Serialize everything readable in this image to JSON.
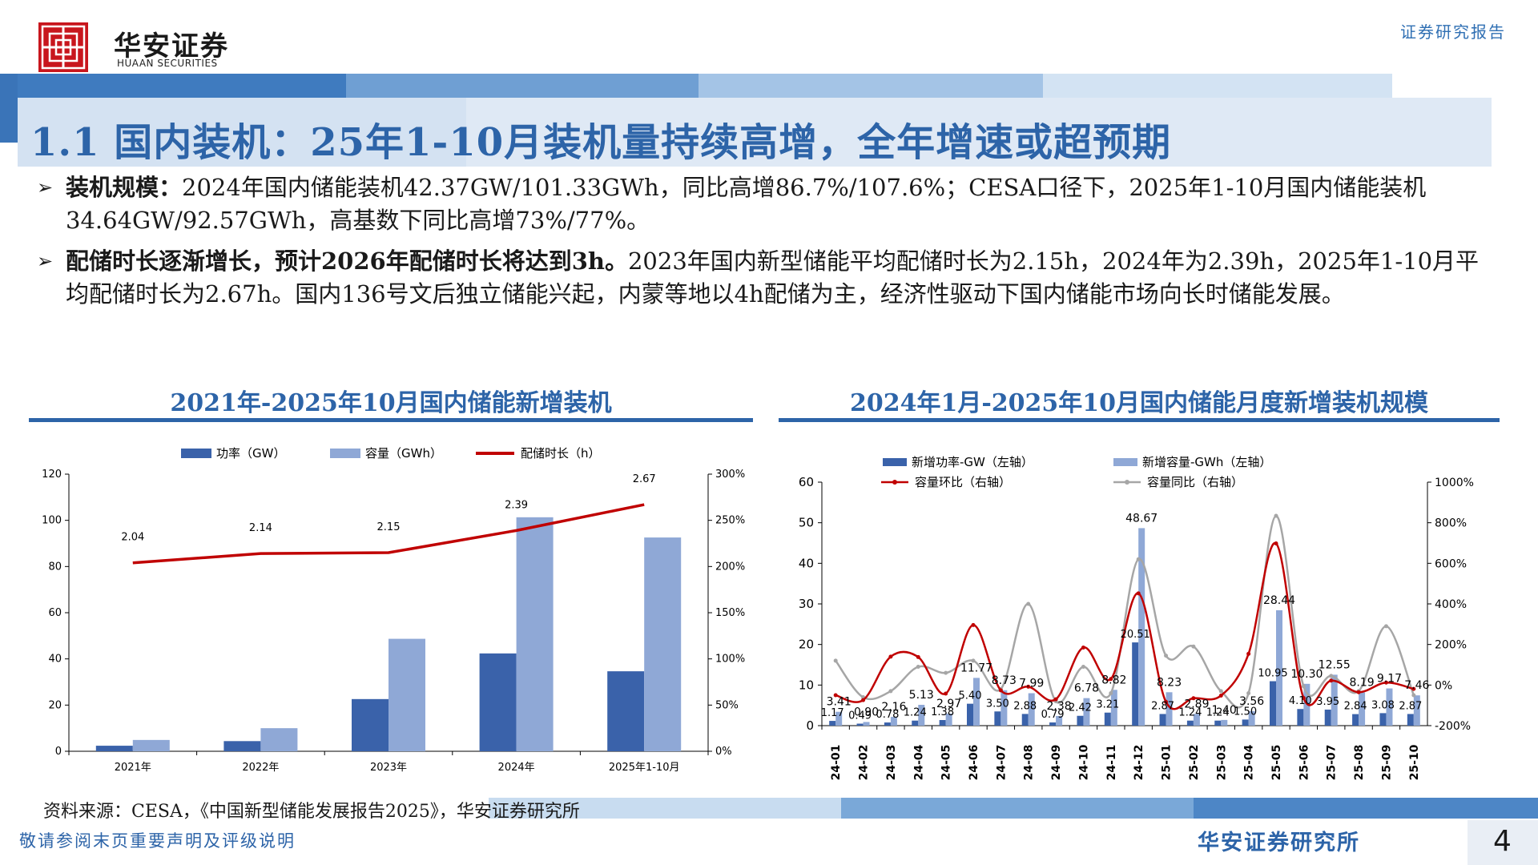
{
  "header": {
    "brand_cn": "华安证券",
    "brand_en": "HUAAN SECURITIES",
    "report_tag": "证券研究报告"
  },
  "title": "1.1 国内装机：25年1-10月装机量持续高增，全年增速或超预期",
  "bullets": [
    {
      "head": "装机规模：",
      "body": "2024年国内储能装机42.37GW/101.33GWh，同比高增86.7%/107.6%；CESA口径下，2025年1-10月国内储能装机34.64GW/92.57GWh，高基数下同比高增73%/77%。"
    },
    {
      "head": "配储时长逐渐增长，预计2026年配储时长将达到3h。",
      "body": "2023年国内新型储能平均配储时长为2.15h，2024年为2.39h，2025年1-10月平均配储时长为2.67h。国内136号文后独立储能兴起，内蒙等地以4h配储为主，经济性驱动下国内储能市场向长时储能发展。"
    }
  ],
  "chart_titles": [
    "2021年-2025年10月国内储能新增装机",
    "2024年1月-2025年10月国内储能月度新增装机规模"
  ],
  "source": "资料来源：CESA，《中国新型储能发展报告2025》，华安证券研究所",
  "footer": {
    "disclaimer": "敬请参阅末页重要声明及评级说明",
    "institute": "华安证券研究所",
    "page": "4"
  },
  "colors": {
    "dark_blue": "#3a62aa",
    "light_blue": "#8fa8d6",
    "red": "#c00000",
    "gray": "#a6a6a6",
    "title_blue": "#2d64a8"
  },
  "chart_data": [
    {
      "type": "bar",
      "categories": [
        "2021年",
        "2022年",
        "2023年",
        "2024年",
        "2025年1-10月"
      ],
      "series": [
        {
          "name": "功率（GW）",
          "type": "bar",
          "axis": "left",
          "values": [
            2.4,
            4.4,
            22.6,
            42.37,
            34.64
          ]
        },
        {
          "name": "容量（GWh）",
          "type": "bar",
          "axis": "left",
          "values": [
            4.9,
            10.0,
            48.7,
            101.33,
            92.57
          ]
        },
        {
          "name": "配储时长（h）",
          "type": "line",
          "axis": "right",
          "values": [
            2.04,
            2.14,
            2.15,
            2.39,
            2.67
          ],
          "labels": [
            "2.04",
            "2.14",
            "2.15",
            "2.39",
            "2.67"
          ]
        }
      ],
      "yleft": {
        "min": 0,
        "max": 120,
        "ticks": [
          "0",
          "20",
          "40",
          "60",
          "80",
          "100",
          "120"
        ]
      },
      "yright": {
        "ticks": [
          "0%",
          "50%",
          "100%",
          "150%",
          "200%",
          "250%",
          "300%"
        ]
      },
      "legend_position": "top"
    },
    {
      "type": "bar",
      "categories": [
        "24-01",
        "24-02",
        "24-03",
        "24-04",
        "24-05",
        "24-06",
        "24-07",
        "24-08",
        "24-09",
        "24-10",
        "24-11",
        "24-12",
        "25-01",
        "25-02",
        "25-03",
        "25-04",
        "25-05",
        "25-06",
        "25-07",
        "25-08",
        "25-09",
        "25-10"
      ],
      "series": [
        {
          "name": "新增功率-GW（左轴）",
          "type": "bar",
          "axis": "left",
          "values": [
            1.17,
            0.49,
            0.78,
            1.24,
            1.38,
            5.4,
            3.5,
            2.88,
            0.79,
            2.42,
            3.21,
            20.51,
            2.87,
            1.24,
            1.24,
            1.5,
            10.95,
            4.1,
            3.95,
            2.84,
            3.08,
            2.87
          ]
        },
        {
          "name": "新增容量-GWh（左轴）",
          "type": "bar",
          "axis": "left",
          "values": [
            3.41,
            0.9,
            2.16,
            5.13,
            2.97,
            11.77,
            8.73,
            7.99,
            2.38,
            6.78,
            8.82,
            48.67,
            8.23,
            2.89,
            1.4,
            3.56,
            28.44,
            10.3,
            12.55,
            8.19,
            9.17,
            7.46
          ]
        },
        {
          "name": "容量环比（右轴）",
          "type": "line",
          "axis": "right",
          "values": [
            -50,
            -74,
            140,
            138,
            -42,
            296,
            -26,
            -8,
            -70,
            185,
            30,
            452,
            -83,
            -65,
            -52,
            154,
            698,
            -64,
            22,
            -35,
            12,
            -19
          ]
        },
        {
          "name": "容量同比（右轴）",
          "type": "line",
          "axis": "right",
          "values": [
            120,
            -60,
            -30,
            90,
            60,
            120,
            -20,
            400,
            -80,
            90,
            -40,
            620,
            145,
            190,
            -30,
            -40,
            834,
            -6,
            45,
            -30,
            290,
            -50
          ]
        }
      ],
      "value_labels": [
        "1.17",
        "3.41",
        "0.49",
        "0.90",
        "0.78",
        "2.16",
        "1.24",
        "5.13",
        "1.38",
        "2.97",
        "5.40",
        "11.77",
        "3.50",
        "8.73",
        "2.88",
        "7.99",
        "0.79",
        "2.38",
        "2.42",
        "6.78",
        "3.21",
        "8.82",
        "20.51",
        "48.67",
        "2.87",
        "8.23",
        "1.24",
        "2.89",
        "1.24",
        "1.40",
        "1.50",
        "3.56",
        "10.95",
        "28.44",
        "4.10",
        "10.30",
        "3.95",
        "12.55",
        "2.84",
        "8.19",
        "3.08",
        "9.17",
        "2.87",
        "7.46"
      ],
      "yleft": {
        "min": 0,
        "max": 60,
        "ticks": [
          "0",
          "10",
          "20",
          "30",
          "40",
          "50",
          "60"
        ]
      },
      "yright": {
        "min": -200,
        "max": 1000,
        "ticks": [
          "-200%",
          "0%",
          "200%",
          "400%",
          "600%",
          "800%",
          "1000%"
        ]
      },
      "legend_position": "top"
    }
  ]
}
